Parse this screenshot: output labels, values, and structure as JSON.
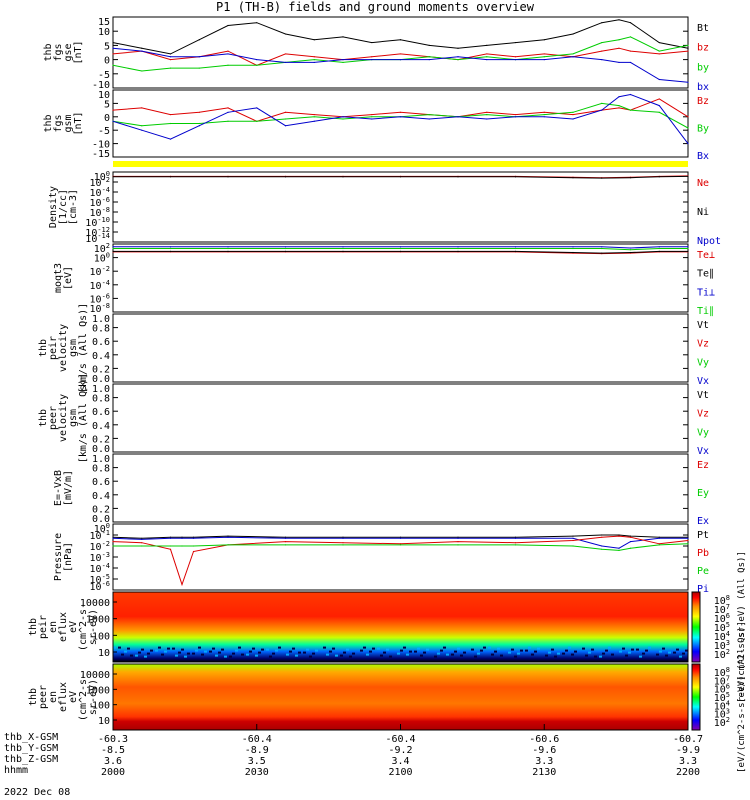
{
  "title": "P1 (TH-B) fields and ground moments overview",
  "date": "2022 Dec 08",
  "colors": {
    "black": "#000000",
    "red": "#dd0000",
    "green": "#00cc00",
    "blue": "#0000cc",
    "yellow": "#ffff00"
  },
  "x_axis": {
    "hhmm": [
      "2000",
      "2030",
      "2100",
      "2130",
      "2200"
    ],
    "rows": [
      {
        "label": "thb_X-GSM",
        "values": [
          "-60.3",
          "-60.4",
          "-60.4",
          "-60.6",
          "-60.7"
        ]
      },
      {
        "label": "thb_Y-GSM",
        "values": [
          "-8.5",
          "-8.9",
          "-9.2",
          "-9.6",
          "-9.9"
        ]
      },
      {
        "label": "thb_Z-GSM",
        "values": [
          "3.6",
          "3.5",
          "3.4",
          "3.3",
          "3.3"
        ]
      },
      {
        "label": "hhmm",
        "values": [
          "2000",
          "2030",
          "2100",
          "2130",
          "2200"
        ]
      }
    ]
  },
  "chart_data": [
    {
      "type": "line",
      "id": "fgs-gse",
      "ylabel": [
        "thb",
        "fgs",
        "gse",
        "[nT]"
      ],
      "ylim": [
        -10,
        15
      ],
      "yticks": [
        "15",
        "10",
        "5",
        "0",
        "-5",
        "-10"
      ],
      "legend": [
        {
          "name": "Bt",
          "color": "#000000"
        },
        {
          "name": "bz",
          "color": "#dd0000"
        },
        {
          "name": "by",
          "color": "#00cc00"
        },
        {
          "name": "bx",
          "color": "#0000cc"
        }
      ],
      "x": [
        0,
        0.05,
        0.1,
        0.15,
        0.2,
        0.25,
        0.3,
        0.35,
        0.4,
        0.45,
        0.5,
        0.55,
        0.6,
        0.65,
        0.7,
        0.75,
        0.8,
        0.85,
        0.88,
        0.9,
        0.95,
        1
      ],
      "series": [
        {
          "name": "Bt",
          "color": "#000000",
          "values": [
            6,
            4,
            2,
            7,
            12,
            13,
            9,
            7,
            8,
            6,
            7,
            5,
            4,
            5,
            6,
            7,
            9,
            13,
            14,
            13,
            6,
            4
          ]
        },
        {
          "name": "bz",
          "color": "#dd0000",
          "values": [
            2,
            3,
            0,
            1,
            3,
            -2,
            2,
            1,
            0,
            1,
            2,
            1,
            0,
            2,
            1,
            2,
            1,
            3,
            4,
            3,
            2,
            3
          ]
        },
        {
          "name": "by",
          "color": "#00cc00",
          "values": [
            -2,
            -4,
            -3,
            -3,
            -2,
            -2,
            -1,
            0,
            -1,
            0,
            0,
            1,
            0,
            1,
            0,
            1,
            2,
            6,
            7,
            8,
            3,
            5
          ]
        },
        {
          "name": "bx",
          "color": "#0000cc",
          "values": [
            4,
            3,
            1,
            1,
            2,
            0,
            -1,
            -1,
            0,
            0,
            0,
            0,
            1,
            0,
            0,
            0,
            1,
            0,
            -1,
            -1,
            -7,
            -8
          ]
        }
      ]
    },
    {
      "type": "line",
      "id": "fgs-gsm",
      "ylabel": [
        "thb",
        "fgs",
        "gsm",
        "[nT]"
      ],
      "ylim": [
        -18,
        12
      ],
      "yticks": [
        "10",
        "5",
        "0",
        "-5",
        "-10",
        "-15"
      ],
      "legend": [
        {
          "name": "Bz",
          "color": "#dd0000"
        },
        {
          "name": "By",
          "color": "#00cc00"
        },
        {
          "name": "Bx",
          "color": "#0000cc"
        }
      ],
      "x": [
        0,
        0.05,
        0.1,
        0.15,
        0.2,
        0.25,
        0.3,
        0.35,
        0.4,
        0.45,
        0.5,
        0.55,
        0.6,
        0.65,
        0.7,
        0.75,
        0.8,
        0.85,
        0.88,
        0.9,
        0.95,
        1
      ],
      "series": [
        {
          "name": "Bz",
          "color": "#dd0000",
          "values": [
            3,
            4,
            1,
            2,
            4,
            -2,
            2,
            1,
            0,
            1,
            2,
            1,
            0,
            2,
            1,
            2,
            1,
            3,
            4,
            3,
            8,
            0
          ]
        },
        {
          "name": "By",
          "color": "#00cc00",
          "values": [
            -2,
            -4,
            -3,
            -3,
            -2,
            -2,
            -1,
            0,
            -1,
            0,
            0,
            1,
            0,
            1,
            0,
            1,
            2,
            6,
            5,
            3,
            2,
            -5
          ]
        },
        {
          "name": "Bx",
          "color": "#0000cc",
          "values": [
            -2,
            -6,
            -10,
            -4,
            2,
            4,
            -4,
            -2,
            0,
            -1,
            0,
            -1,
            0,
            -1,
            0,
            0,
            -1,
            3,
            9,
            10,
            5,
            -12
          ]
        }
      ]
    },
    {
      "type": "line",
      "id": "density",
      "ylabel": [
        "Density",
        "[1/cc]",
        "[cm-3]"
      ],
      "ylim": [
        -15,
        1
      ],
      "yticks": [
        "10^0",
        "10^-2",
        "10^-4",
        "10^-6",
        "10^-8",
        "10^-10",
        "10^-12",
        "10^-14"
      ],
      "legend": [
        {
          "name": "Ne",
          "color": "#dd0000"
        },
        {
          "name": "Ni",
          "color": "#000000"
        },
        {
          "name": "Npot",
          "color": "#0000cc"
        }
      ],
      "x": [
        0,
        0.1,
        0.2,
        0.3,
        0.4,
        0.5,
        0.6,
        0.7,
        0.8,
        0.85,
        0.9,
        0.95,
        1
      ],
      "series": [
        {
          "name": "Ne",
          "color": "#dd0000",
          "values": [
            0,
            0,
            0,
            0,
            0,
            0,
            0,
            0,
            -0.2,
            -0.3,
            -0.2,
            0,
            0.1
          ]
        },
        {
          "name": "Ni",
          "color": "#000000",
          "values": [
            -0.1,
            -0.1,
            -0.1,
            -0.1,
            -0.1,
            -0.1,
            -0.1,
            -0.1,
            -0.3,
            -0.4,
            -0.3,
            -0.1,
            0
          ]
        }
      ]
    },
    {
      "type": "line",
      "id": "temperature",
      "ylabel": [
        "moqt3",
        "[eV]"
      ],
      "ylim": [
        -9,
        3
      ],
      "yticks": [
        "10^2",
        "10^0",
        "10^-2",
        "10^-4",
        "10^-6",
        "10^-8"
      ],
      "legend": [
        {
          "name": "Te⊥",
          "color": "#dd0000"
        },
        {
          "name": "Te∥",
          "color": "#000000"
        },
        {
          "name": "Ti⊥",
          "color": "#0000cc"
        },
        {
          "name": "Ti∥",
          "color": "#00cc00"
        }
      ],
      "x": [
        0,
        0.1,
        0.2,
        0.3,
        0.4,
        0.5,
        0.6,
        0.7,
        0.8,
        0.85,
        0.9,
        0.95,
        1
      ],
      "series": [
        {
          "name": "Ti⊥",
          "color": "#0000cc",
          "values": [
            2.5,
            2.5,
            2.5,
            2.5,
            2.5,
            2.5,
            2.5,
            2.5,
            2.5,
            2.5,
            2.3,
            2.5,
            2.5
          ]
        },
        {
          "name": "Ti∥",
          "color": "#00cc00",
          "values": [
            2.2,
            2.2,
            2.2,
            2.2,
            2.2,
            2.2,
            2.2,
            2.2,
            2.2,
            2.2,
            2.0,
            2.2,
            2.2
          ]
        },
        {
          "name": "Te⊥",
          "color": "#dd0000",
          "values": [
            1.6,
            1.6,
            1.6,
            1.6,
            1.6,
            1.6,
            1.6,
            1.6,
            1.4,
            1.3,
            1.4,
            1.6,
            1.6
          ]
        },
        {
          "name": "Te∥",
          "color": "#000000",
          "values": [
            1.7,
            1.7,
            1.7,
            1.7,
            1.7,
            1.7,
            1.7,
            1.7,
            1.5,
            1.4,
            1.5,
            1.7,
            1.7
          ]
        }
      ]
    },
    {
      "type": "line",
      "id": "peir-velocity",
      "ylabel": [
        "thb",
        "peir",
        "velocity",
        "gsm",
        "[km/s (All Qs)]"
      ],
      "ylim": [
        0,
        1
      ],
      "yticks": [
        "1.0",
        "0.8",
        "0.6",
        "0.4",
        "0.2",
        "0.0"
      ],
      "legend": [
        {
          "name": "Vt",
          "color": "#000000"
        },
        {
          "name": "Vz",
          "color": "#dd0000"
        },
        {
          "name": "Vy",
          "color": "#00cc00"
        },
        {
          "name": "Vx",
          "color": "#0000cc"
        }
      ],
      "series": []
    },
    {
      "type": "line",
      "id": "peer-velocity",
      "ylabel": [
        "thb",
        "peer",
        "velocity",
        "gsm",
        "[km/s (All Qs)]"
      ],
      "ylim": [
        0,
        1
      ],
      "yticks": [
        "1.0",
        "0.8",
        "0.6",
        "0.4",
        "0.2",
        "0.0"
      ],
      "legend": [
        {
          "name": "Vt",
          "color": "#000000"
        },
        {
          "name": "Vz",
          "color": "#dd0000"
        },
        {
          "name": "Vy",
          "color": "#00cc00"
        },
        {
          "name": "Vx",
          "color": "#0000cc"
        }
      ],
      "series": []
    },
    {
      "type": "line",
      "id": "efield",
      "ylabel": [
        "E=-VxB",
        "[mV/m]"
      ],
      "ylim": [
        0,
        1
      ],
      "yticks": [
        "1.0",
        "0.8",
        "0.6",
        "0.4",
        "0.2",
        "0.0"
      ],
      "legend": [
        {
          "name": "Ez",
          "color": "#dd0000"
        },
        {
          "name": "Ey",
          "color": "#00cc00"
        },
        {
          "name": "Ex",
          "color": "#0000cc"
        }
      ],
      "series": []
    },
    {
      "type": "line",
      "id": "pressure",
      "ylabel": [
        "Pressure",
        "[nPa]"
      ],
      "ylim": [
        -6,
        0
      ],
      "yticks": [
        "10^0",
        "10^-1",
        "10^-2",
        "10^-3",
        "10^-4",
        "10^-5",
        "10^-6"
      ],
      "legend": [
        {
          "name": "Pt",
          "color": "#000000"
        },
        {
          "name": "Pb",
          "color": "#dd0000"
        },
        {
          "name": "Pe",
          "color": "#00cc00"
        },
        {
          "name": "Pi",
          "color": "#0000cc"
        }
      ],
      "x": [
        0,
        0.05,
        0.1,
        0.12,
        0.14,
        0.2,
        0.3,
        0.4,
        0.5,
        0.6,
        0.7,
        0.8,
        0.85,
        0.88,
        0.9,
        0.95,
        1
      ],
      "series": [
        {
          "name": "Pt",
          "color": "#000000",
          "values": [
            -1.2,
            -1.3,
            -1.2,
            -1.2,
            -1.2,
            -1.1,
            -1.2,
            -1.2,
            -1.2,
            -1.2,
            -1.2,
            -1.1,
            -1.0,
            -1.0,
            -1.1,
            -1.2,
            -1.2
          ]
        },
        {
          "name": "Pi",
          "color": "#0000cc",
          "values": [
            -1.3,
            -1.4,
            -1.3,
            -1.3,
            -1.3,
            -1.2,
            -1.3,
            -1.3,
            -1.3,
            -1.3,
            -1.3,
            -1.3,
            -2.0,
            -2.2,
            -1.6,
            -1.3,
            -1.3
          ]
        },
        {
          "name": "Pb",
          "color": "#dd0000",
          "values": [
            -1.6,
            -1.7,
            -2.3,
            -5.5,
            -2.5,
            -1.9,
            -1.6,
            -1.7,
            -1.8,
            -1.6,
            -1.7,
            -1.5,
            -1.2,
            -1.1,
            -1.2,
            -1.8,
            -1.5
          ]
        },
        {
          "name": "Pe",
          "color": "#00cc00",
          "values": [
            -2.0,
            -2.0,
            -2.0,
            -2.0,
            -2.0,
            -1.9,
            -1.9,
            -1.9,
            -1.9,
            -1.9,
            -1.9,
            -2.0,
            -2.3,
            -2.4,
            -2.2,
            -1.9,
            -1.8
          ]
        }
      ]
    },
    {
      "type": "heatmap",
      "id": "peir-en-eflux",
      "ylabel": [
        "thb",
        "peir",
        "en",
        "eflux",
        "eV",
        "(cm^2-s-",
        "sr-eV)"
      ],
      "yticks": [
        "10000",
        "1000",
        "100",
        "10"
      ],
      "colorbar_label": "[eV/(cm^2-s-sr-eV) (All Qs)]",
      "colorbar_ticks": [
        "10^8",
        "10^7",
        "10^6",
        "10^5",
        "10^4",
        "10^3",
        "10^2"
      ]
    },
    {
      "type": "heatmap",
      "id": "peer-en-eflux",
      "ylabel": [
        "thb",
        "peer",
        "en",
        "eflux",
        "eV",
        "(cm^2-s-",
        "sr-eV)"
      ],
      "yticks": [
        "10000",
        "1000",
        "100",
        "10"
      ],
      "colorbar_label": "[eV/(cm^2-s-sr-eV) (All Qs)]",
      "colorbar_ticks": [
        "10^8",
        "10^7",
        "10^6",
        "10^5",
        "10^4",
        "10^3",
        "10^2"
      ]
    }
  ]
}
